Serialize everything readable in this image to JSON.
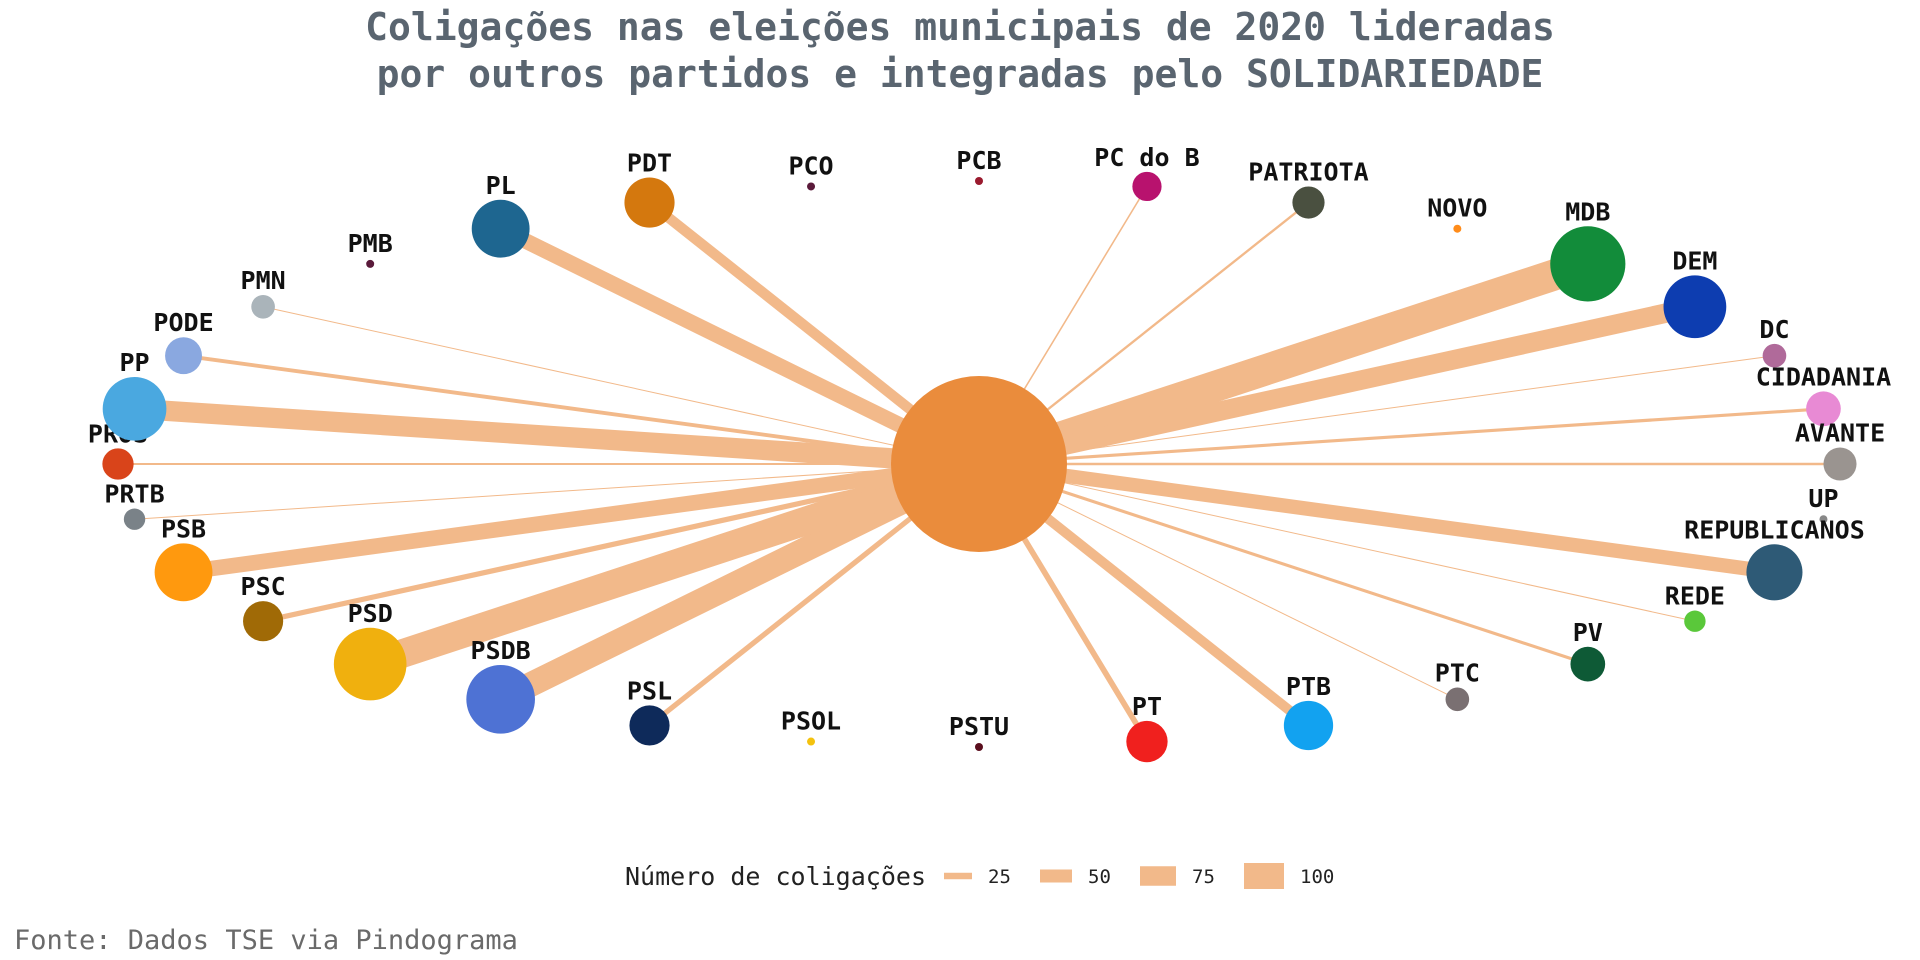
{
  "title": {
    "line1": "Coligações nas eleições municipais de 2020 lideradas",
    "line2": "por outros partidos e integradas pelo SOLIDARIEDADE"
  },
  "source": "Fonte: Dados TSE via Pindograma",
  "edge_color": "#f2b98a",
  "center": {
    "name": "SOLIDARIEDADE",
    "color": "#ea8c3c"
  },
  "legend": {
    "title": "Número de coligações",
    "items": [
      {
        "label": "25",
        "value": 25
      },
      {
        "label": "50",
        "value": 50
      },
      {
        "label": "75",
        "value": 75
      },
      {
        "label": "100",
        "value": 100
      }
    ]
  },
  "nodes": [
    {
      "name": "PROS",
      "color": "#d9441a",
      "coalitions": 8
    },
    {
      "name": "PP",
      "color": "#4aa8e0",
      "coalitions": 78
    },
    {
      "name": "PODE",
      "color": "#8aa8e0",
      "coalitions": 15
    },
    {
      "name": "PMN",
      "color": "#aab4ba",
      "coalitions": 2
    },
    {
      "name": "PMB",
      "color": "#5a1a3a",
      "coalitions": 0
    },
    {
      "name": "PL",
      "color": "#1e6690",
      "coalitions": 60
    },
    {
      "name": "PDT",
      "color": "#d4780e",
      "coalitions": 40
    },
    {
      "name": "PCO",
      "color": "#5a1a3a",
      "coalitions": 0
    },
    {
      "name": "PCB",
      "color": "#9a1a2e",
      "coalitions": 0
    },
    {
      "name": "PC do B",
      "color": "#b8126e",
      "coalitions": 6
    },
    {
      "name": "PATRIOTA",
      "color": "#4a5040",
      "coalitions": 9
    },
    {
      "name": "NOVO",
      "color": "#ff8c1a",
      "coalitions": 0
    },
    {
      "name": "MDB",
      "color": "#128c3a",
      "coalitions": 120
    },
    {
      "name": "DEM",
      "color": "#0d3db0",
      "coalitions": 75
    },
    {
      "name": "DC",
      "color": "#b06a9a",
      "coalitions": 2
    },
    {
      "name": "CIDADANIA",
      "color": "#e88ad4",
      "coalitions": 12
    },
    {
      "name": "AVANTE",
      "color": "#9a9490",
      "coalitions": 10
    },
    {
      "name": "UP",
      "color": "#888888",
      "coalitions": 0
    },
    {
      "name": "REPUBLICANOS",
      "color": "#2e5a76",
      "coalitions": 55
    },
    {
      "name": "REDE",
      "color": "#5ac83a",
      "coalitions": 1
    },
    {
      "name": "PV",
      "color": "#0e5a36",
      "coalitions": 12
    },
    {
      "name": "PTC",
      "color": "#7a7072",
      "coalitions": 2
    },
    {
      "name": "PTB",
      "color": "#12a2f0",
      "coalitions": 38
    },
    {
      "name": "PT",
      "color": "#f0201e",
      "coalitions": 22
    },
    {
      "name": "PSTU",
      "color": "#5a0e1e",
      "coalitions": 0
    },
    {
      "name": "PSOL",
      "color": "#f4c20e",
      "coalitions": 0
    },
    {
      "name": "PSL",
      "color": "#0e2a5a",
      "coalitions": 20
    },
    {
      "name": "PSDB",
      "color": "#4e72d4",
      "coalitions": 95
    },
    {
      "name": "PSD",
      "color": "#f0b00e",
      "coalitions": 110
    },
    {
      "name": "PSC",
      "color": "#a06a06",
      "coalitions": 20
    },
    {
      "name": "PSB",
      "color": "#ff990e",
      "coalitions": 60
    },
    {
      "name": "PRTB",
      "color": "#7a8288",
      "coalitions": 1
    }
  ]
}
